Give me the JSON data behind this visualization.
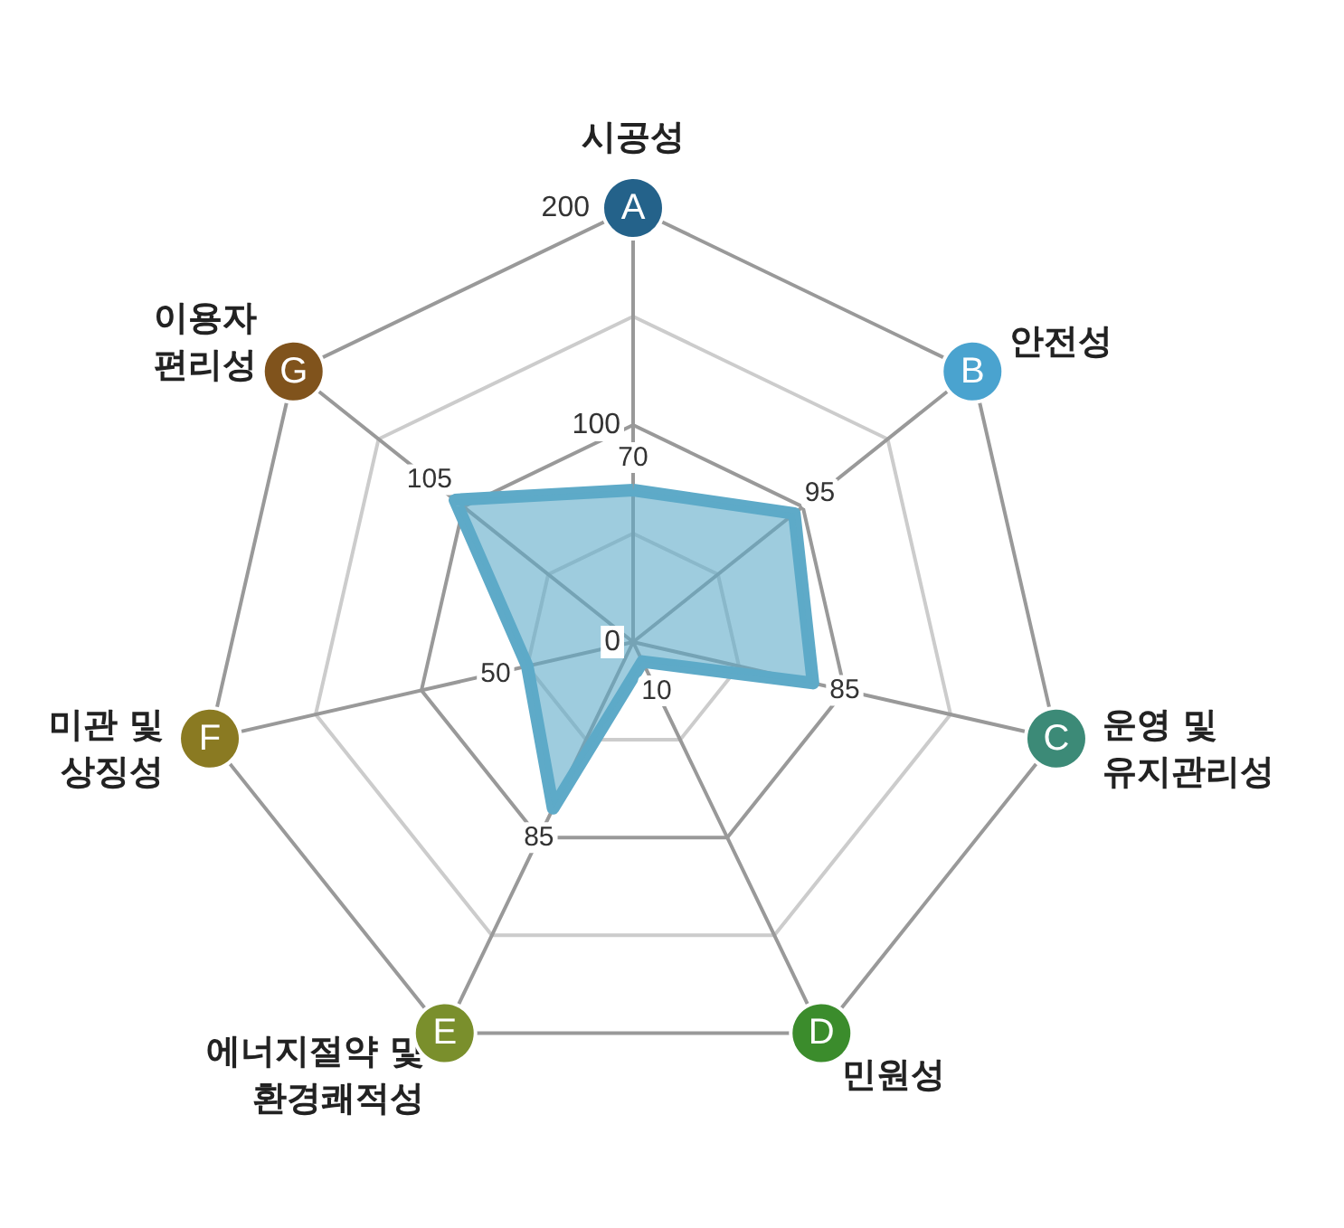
{
  "chart_data": {
    "type": "radar",
    "categories": [
      "시공성",
      "안전성",
      "운영 및 유지관리성",
      "민원성",
      "에너지절약 및 환경쾌적성",
      "미관 및 상징성",
      "이용자 편리성"
    ],
    "series": [
      {
        "color": "#5eaac8",
        "values": [
          70,
          95,
          85,
          10,
          85,
          50,
          105
        ]
      }
    ],
    "ylim": [
      0,
      200
    ],
    "yticks": [
      0,
      100,
      200
    ],
    "annotations": [
      "A",
      "B",
      "C",
      "D",
      "E",
      "F",
      "G"
    ],
    "data_labels": true,
    "grid": true,
    "marker": "none",
    "line_style": "solid"
  }
}
